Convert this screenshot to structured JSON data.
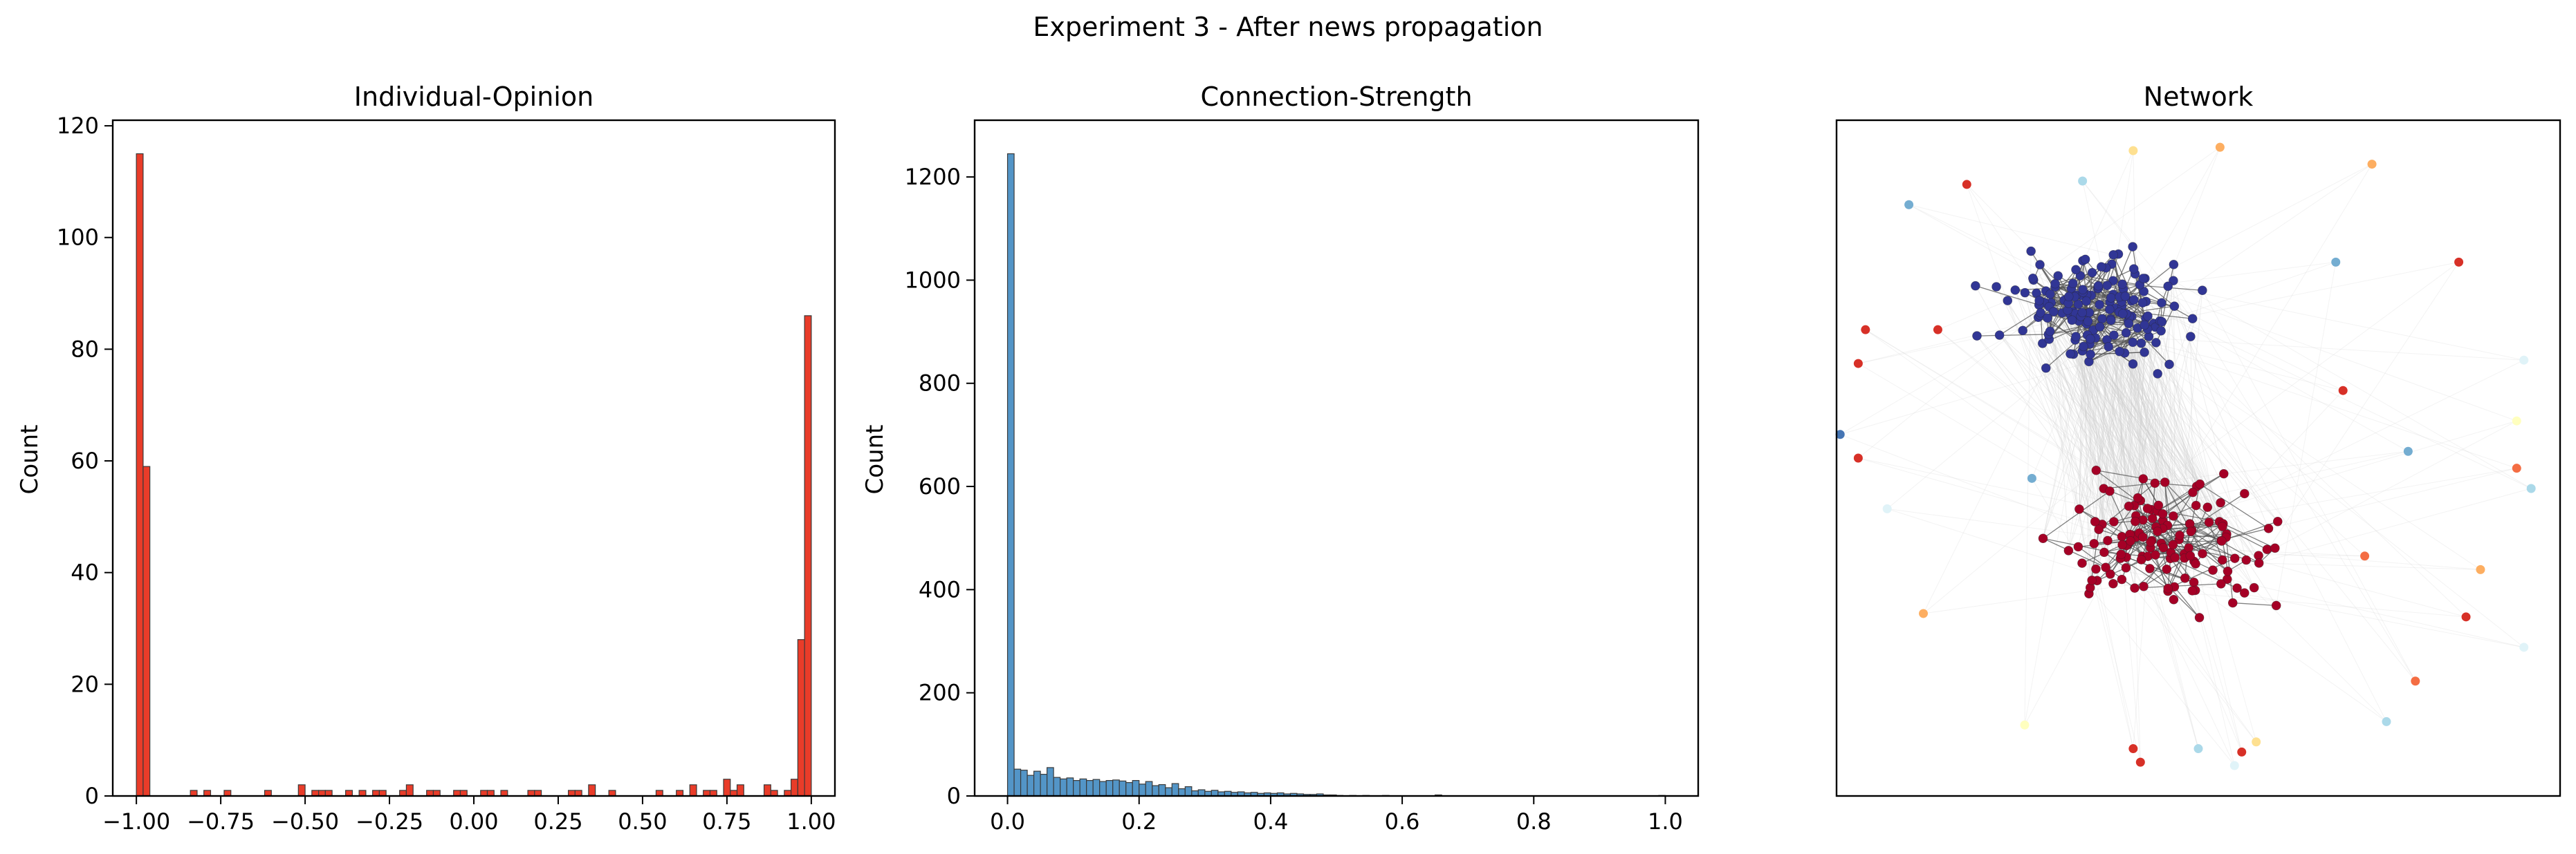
{
  "figure": {
    "suptitle": "Experiment 3 - After news propagation"
  },
  "chart_data": [
    {
      "type": "bar",
      "title": "Individual-Opinion",
      "xlabel": "",
      "ylabel": "Count",
      "xlim": [
        -1.07,
        1.07
      ],
      "ylim": [
        0,
        121
      ],
      "xticks": [
        -1.0,
        -0.75,
        -0.5,
        -0.25,
        0.0,
        0.25,
        0.5,
        0.75,
        1.0
      ],
      "xtick_labels": [
        "−1.00",
        "−0.75",
        "−0.50",
        "−0.25",
        "0.00",
        "0.25",
        "0.50",
        "0.75",
        "1.00"
      ],
      "yticks": [
        0,
        20,
        40,
        60,
        80,
        100,
        120
      ],
      "ytick_labels": [
        "0",
        "20",
        "40",
        "60",
        "80",
        "100",
        "120"
      ],
      "bar_width": 0.02,
      "color": "#e8311e",
      "x": [
        -0.99,
        -0.97,
        -0.83,
        -0.79,
        -0.73,
        -0.61,
        -0.51,
        -0.47,
        -0.45,
        -0.43,
        -0.37,
        -0.33,
        -0.29,
        -0.27,
        -0.21,
        -0.19,
        -0.13,
        -0.11,
        -0.05,
        -0.03,
        0.03,
        0.05,
        0.09,
        0.17,
        0.19,
        0.29,
        0.31,
        0.35,
        0.41,
        0.55,
        0.61,
        0.65,
        0.69,
        0.71,
        0.75,
        0.77,
        0.79,
        0.87,
        0.89,
        0.93,
        0.95,
        0.97,
        0.99
      ],
      "values": [
        115,
        59,
        1,
        1,
        1,
        1,
        2,
        1,
        1,
        1,
        1,
        1,
        1,
        1,
        1,
        2,
        1,
        1,
        1,
        1,
        1,
        1,
        1,
        1,
        1,
        1,
        1,
        2,
        1,
        1,
        1,
        2,
        1,
        1,
        3,
        1,
        2,
        2,
        1,
        1,
        3,
        28,
        86
      ]
    },
    {
      "type": "bar",
      "title": "Connection-Strength",
      "xlabel": "",
      "ylabel": "Count",
      "xlim": [
        -0.05,
        1.05
      ],
      "ylim": [
        0,
        1310
      ],
      "xticks": [
        0.0,
        0.2,
        0.4,
        0.6,
        0.8,
        1.0
      ],
      "xtick_labels": [
        "0.0",
        "0.2",
        "0.4",
        "0.6",
        "0.8",
        "1.0"
      ],
      "yticks": [
        0,
        200,
        400,
        600,
        800,
        1000,
        1200
      ],
      "ytick_labels": [
        "0",
        "200",
        "400",
        "600",
        "800",
        "1000",
        "1200"
      ],
      "bin_width": 0.01,
      "color": "#4a8fc4",
      "x": [
        0.005,
        0.015,
        0.025,
        0.035,
        0.045,
        0.055,
        0.065,
        0.075,
        0.085,
        0.095,
        0.105,
        0.115,
        0.125,
        0.135,
        0.145,
        0.155,
        0.165,
        0.175,
        0.185,
        0.195,
        0.205,
        0.215,
        0.225,
        0.235,
        0.245,
        0.255,
        0.265,
        0.275,
        0.285,
        0.295,
        0.305,
        0.315,
        0.325,
        0.335,
        0.345,
        0.355,
        0.365,
        0.375,
        0.385,
        0.395,
        0.405,
        0.415,
        0.425,
        0.435,
        0.445,
        0.455,
        0.465,
        0.475,
        0.485,
        0.495,
        0.505,
        0.525,
        0.545,
        0.575,
        0.655,
        0.995
      ],
      "values": [
        1245,
        52,
        50,
        40,
        48,
        42,
        55,
        36,
        33,
        35,
        30,
        33,
        30,
        32,
        28,
        30,
        31,
        29,
        26,
        30,
        23,
        28,
        20,
        22,
        16,
        24,
        14,
        18,
        10,
        12,
        9,
        11,
        8,
        9,
        7,
        8,
        6,
        7,
        5,
        6,
        5,
        6,
        4,
        5,
        4,
        3,
        3,
        4,
        2,
        2,
        1,
        1,
        1,
        1,
        2,
        1
      ]
    },
    {
      "type": "scatter",
      "title": "Network",
      "grid": false,
      "groups": [
        {
          "label": "cluster-top",
          "color": "#313695",
          "center": [
            0.36,
            0.72
          ],
          "spread": [
            0.11,
            0.065
          ],
          "count": 155
        },
        {
          "label": "cluster-bottom",
          "color": "#a50026",
          "center": [
            0.46,
            0.37
          ],
          "spread": [
            0.12,
            0.075
          ],
          "count": 135
        }
      ],
      "outliers": [
        {
          "x": 0.41,
          "y": 0.955,
          "color": "#fee090"
        },
        {
          "x": 0.53,
          "y": 0.96,
          "color": "#fdae61"
        },
        {
          "x": 0.74,
          "y": 0.935,
          "color": "#fdae61"
        },
        {
          "x": 0.34,
          "y": 0.91,
          "color": "#abd9e9"
        },
        {
          "x": 0.18,
          "y": 0.905,
          "color": "#d73027"
        },
        {
          "x": 0.1,
          "y": 0.875,
          "color": "#74add1"
        },
        {
          "x": 0.86,
          "y": 0.79,
          "color": "#d73027"
        },
        {
          "x": 0.69,
          "y": 0.79,
          "color": "#74add1"
        },
        {
          "x": 0.04,
          "y": 0.69,
          "color": "#d73027"
        },
        {
          "x": 0.14,
          "y": 0.69,
          "color": "#d73027"
        },
        {
          "x": 0.03,
          "y": 0.64,
          "color": "#d73027"
        },
        {
          "x": 0.95,
          "y": 0.645,
          "color": "#e0f3f8"
        },
        {
          "x": 0.7,
          "y": 0.6,
          "color": "#d73027"
        },
        {
          "x": 0.94,
          "y": 0.555,
          "color": "#ffffbf"
        },
        {
          "x": 0.005,
          "y": 0.535,
          "color": "#4575b4"
        },
        {
          "x": 0.79,
          "y": 0.51,
          "color": "#74add1"
        },
        {
          "x": 0.03,
          "y": 0.5,
          "color": "#d73027"
        },
        {
          "x": 0.94,
          "y": 0.485,
          "color": "#f46d43"
        },
        {
          "x": 0.96,
          "y": 0.455,
          "color": "#abd9e9"
        },
        {
          "x": 0.27,
          "y": 0.47,
          "color": "#74add1"
        },
        {
          "x": 0.07,
          "y": 0.425,
          "color": "#e0f3f8"
        },
        {
          "x": 0.73,
          "y": 0.355,
          "color": "#f46d43"
        },
        {
          "x": 0.89,
          "y": 0.335,
          "color": "#fdae61"
        },
        {
          "x": 0.12,
          "y": 0.27,
          "color": "#fdae61"
        },
        {
          "x": 0.87,
          "y": 0.265,
          "color": "#d73027"
        },
        {
          "x": 0.95,
          "y": 0.22,
          "color": "#e0f3f8"
        },
        {
          "x": 0.8,
          "y": 0.17,
          "color": "#f46d43"
        },
        {
          "x": 0.76,
          "y": 0.11,
          "color": "#abd9e9"
        },
        {
          "x": 0.26,
          "y": 0.105,
          "color": "#ffffbf"
        },
        {
          "x": 0.41,
          "y": 0.07,
          "color": "#d73027"
        },
        {
          "x": 0.5,
          "y": 0.07,
          "color": "#abd9e9"
        },
        {
          "x": 0.58,
          "y": 0.08,
          "color": "#fee090"
        },
        {
          "x": 0.56,
          "y": 0.065,
          "color": "#d73027"
        },
        {
          "x": 0.42,
          "y": 0.05,
          "color": "#d73027"
        },
        {
          "x": 0.55,
          "y": 0.045,
          "color": "#e0f3f8"
        }
      ]
    }
  ]
}
